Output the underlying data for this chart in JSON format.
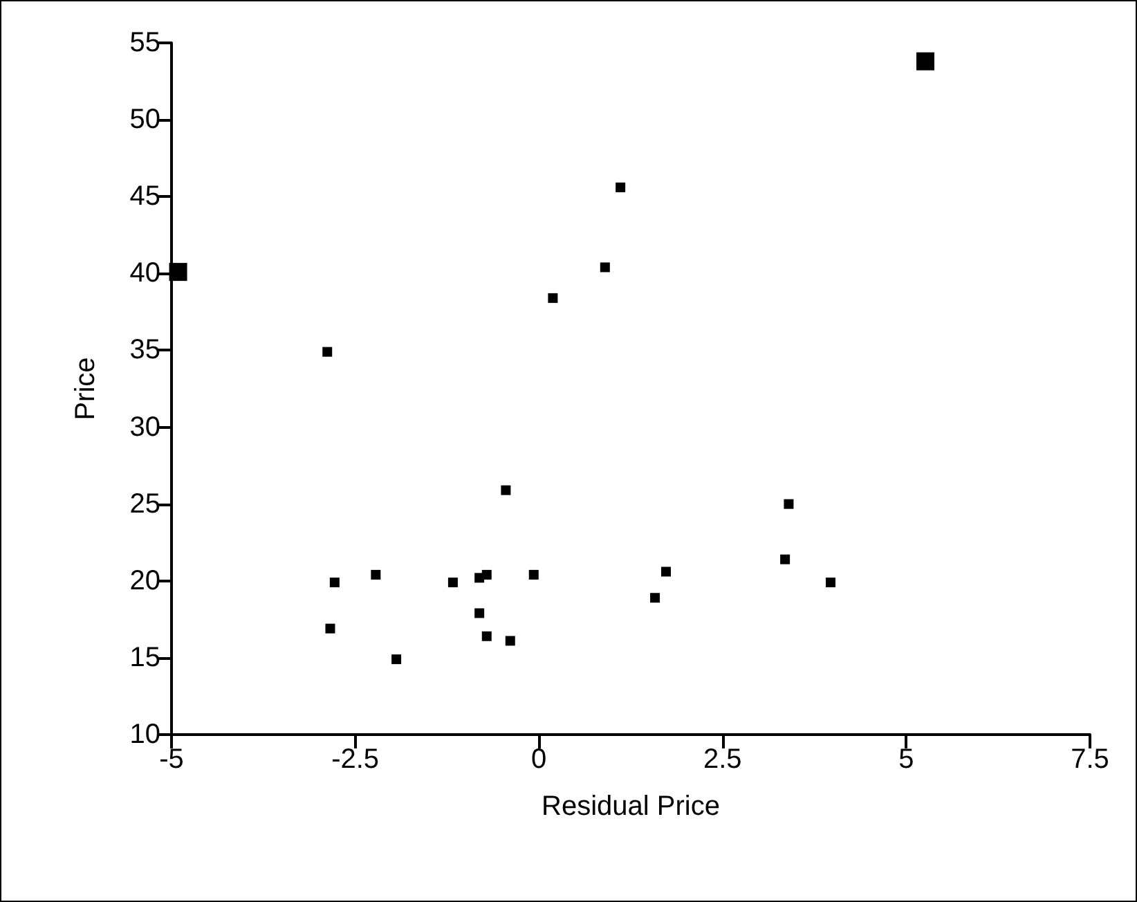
{
  "chart_data": {
    "type": "scatter",
    "xlabel": "Residual Price",
    "ylabel": "Price",
    "xlim": [
      -5,
      7.5
    ],
    "xticks": [
      -5,
      {
        "value": -2.5,
        "label": "-2.5"
      },
      0,
      {
        "value": 2.5,
        "label": "2.5"
      },
      5,
      {
        "value": 7.5,
        "label": "7.5"
      }
    ],
    "ylim": [
      10,
      55
    ],
    "yticks": [
      10,
      15,
      20,
      25,
      30,
      35,
      40,
      45,
      50,
      55
    ],
    "marker": "square",
    "series": [
      {
        "color": "#000000",
        "x": [
          -2.88,
          -2.78,
          -2.84,
          -2.22,
          -1.94,
          -1.17,
          -0.81,
          -0.71,
          -0.81,
          -0.71,
          -0.39,
          -0.45,
          -0.07,
          0.19,
          0.9,
          1.11,
          1.73,
          1.58,
          3.35,
          3.4,
          3.97
        ],
        "values": [
          34.9,
          19.9,
          16.9,
          20.4,
          14.9,
          19.9,
          20.2,
          20.4,
          17.9,
          16.4,
          16.1,
          25.9,
          20.4,
          38.4,
          40.4,
          45.6,
          20.6,
          18.9,
          21.4,
          25.0,
          19.9
        ]
      },
      {
        "color": "#000000",
        "x": [
          -4.91,
          5.26
        ],
        "values": [
          40.1,
          53.8
        ]
      }
    ]
  }
}
